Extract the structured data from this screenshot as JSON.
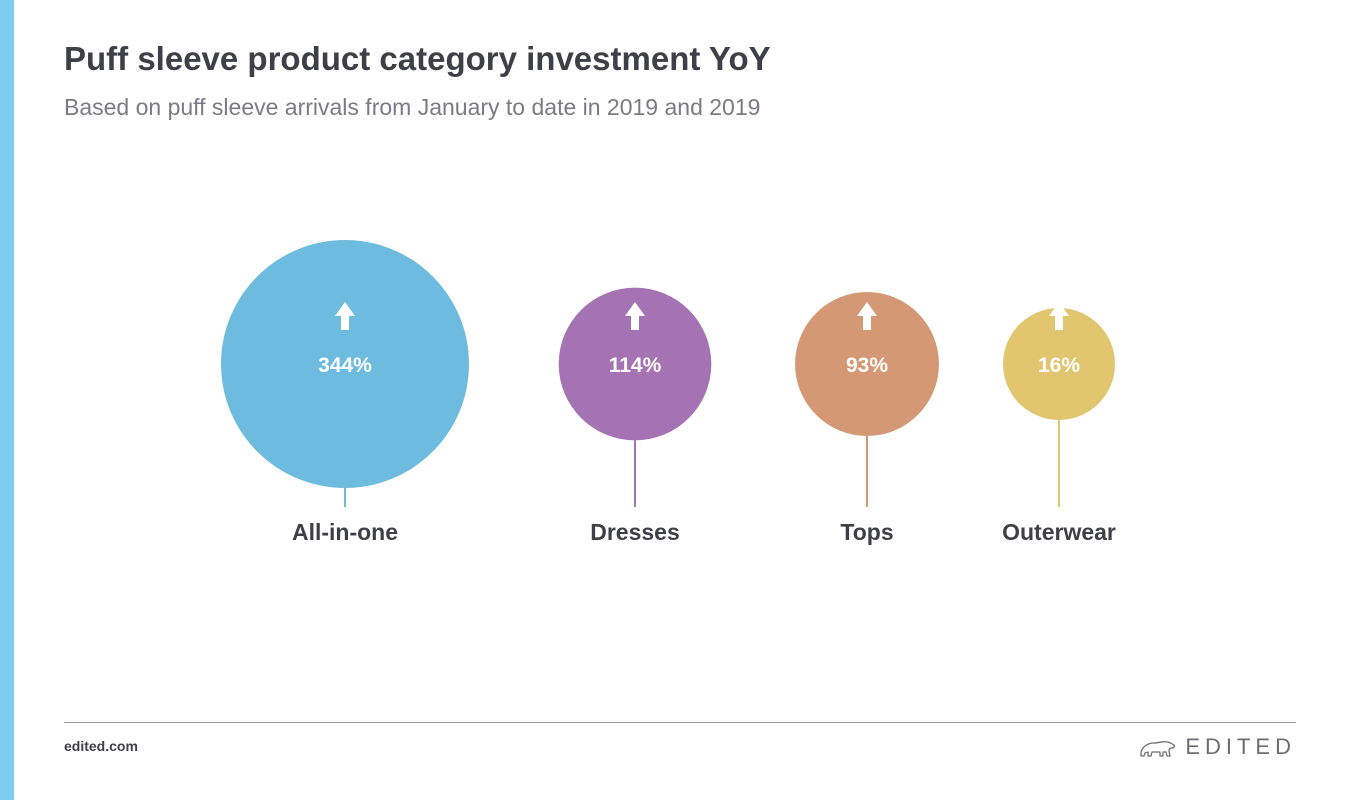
{
  "header": {
    "title": "Puff sleeve product category investment YoY",
    "subtitle": "Based on puff sleeve arrivals from January to date in 2019 and 2019"
  },
  "colors": {
    "accent_bar": "#7ecdf0",
    "text_dark": "#3f3f47",
    "text_muted": "#7b7b84"
  },
  "chart_data": {
    "type": "bubble",
    "direction_icon": "arrow-up-icon",
    "categories": [
      "All-in-one",
      "Dresses",
      "Tops",
      "Outerwear"
    ],
    "values": [
      344,
      114,
      93,
      16
    ],
    "value_labels": [
      "344%",
      "114%",
      "93%",
      "16%"
    ],
    "unit": "%",
    "colors": [
      "#6dbcdf",
      "#a572b3",
      "#d59874",
      "#e1c56f"
    ]
  },
  "footer": {
    "url": "edited.com",
    "brand": "EDITED",
    "brand_icon": "polar-bear-icon"
  }
}
